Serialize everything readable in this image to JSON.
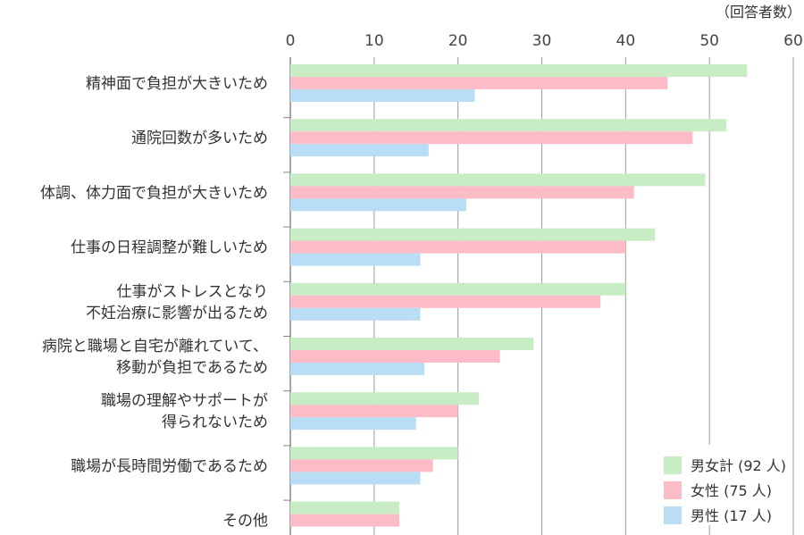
{
  "chart_data": {
    "type": "bar",
    "orientation": "horizontal",
    "unit_label": "（回答者数）",
    "xlim": [
      0,
      60
    ],
    "x_ticks": [
      0,
      10,
      20,
      30,
      40,
      50,
      60
    ],
    "grid": true,
    "legend_position": "bottom-right",
    "categories": [
      [
        "精神面で負担が大きいため"
      ],
      [
        "通院回数が多いため"
      ],
      [
        "体調、体力面で負担が大きいため"
      ],
      [
        "仕事の日程調整が難しいため"
      ],
      [
        "仕事がストレスとなり",
        "不妊治療に影響が出るため"
      ],
      [
        "病院と職場と自宅が離れていて、",
        "移動が負担であるため"
      ],
      [
        "職場の理解やサポートが",
        "得られないため"
      ],
      [
        "職場が長時間労働であるため"
      ],
      [
        "その他"
      ]
    ],
    "series": [
      {
        "name": "男女計 (92 人)",
        "color": "#c8ecc4",
        "values": [
          54.5,
          52,
          49.5,
          43.5,
          40,
          29,
          22.5,
          20,
          13
        ]
      },
      {
        "name": "女性 (75 人)",
        "color": "#fbbcc8",
        "values": [
          45,
          48,
          41,
          40,
          37,
          25,
          20,
          17,
          13
        ]
      },
      {
        "name": "男性 (17 人)",
        "color": "#b9ddf5",
        "values": [
          22,
          16.5,
          21,
          15.5,
          15.5,
          16,
          15,
          15.5,
          null
        ]
      }
    ]
  }
}
